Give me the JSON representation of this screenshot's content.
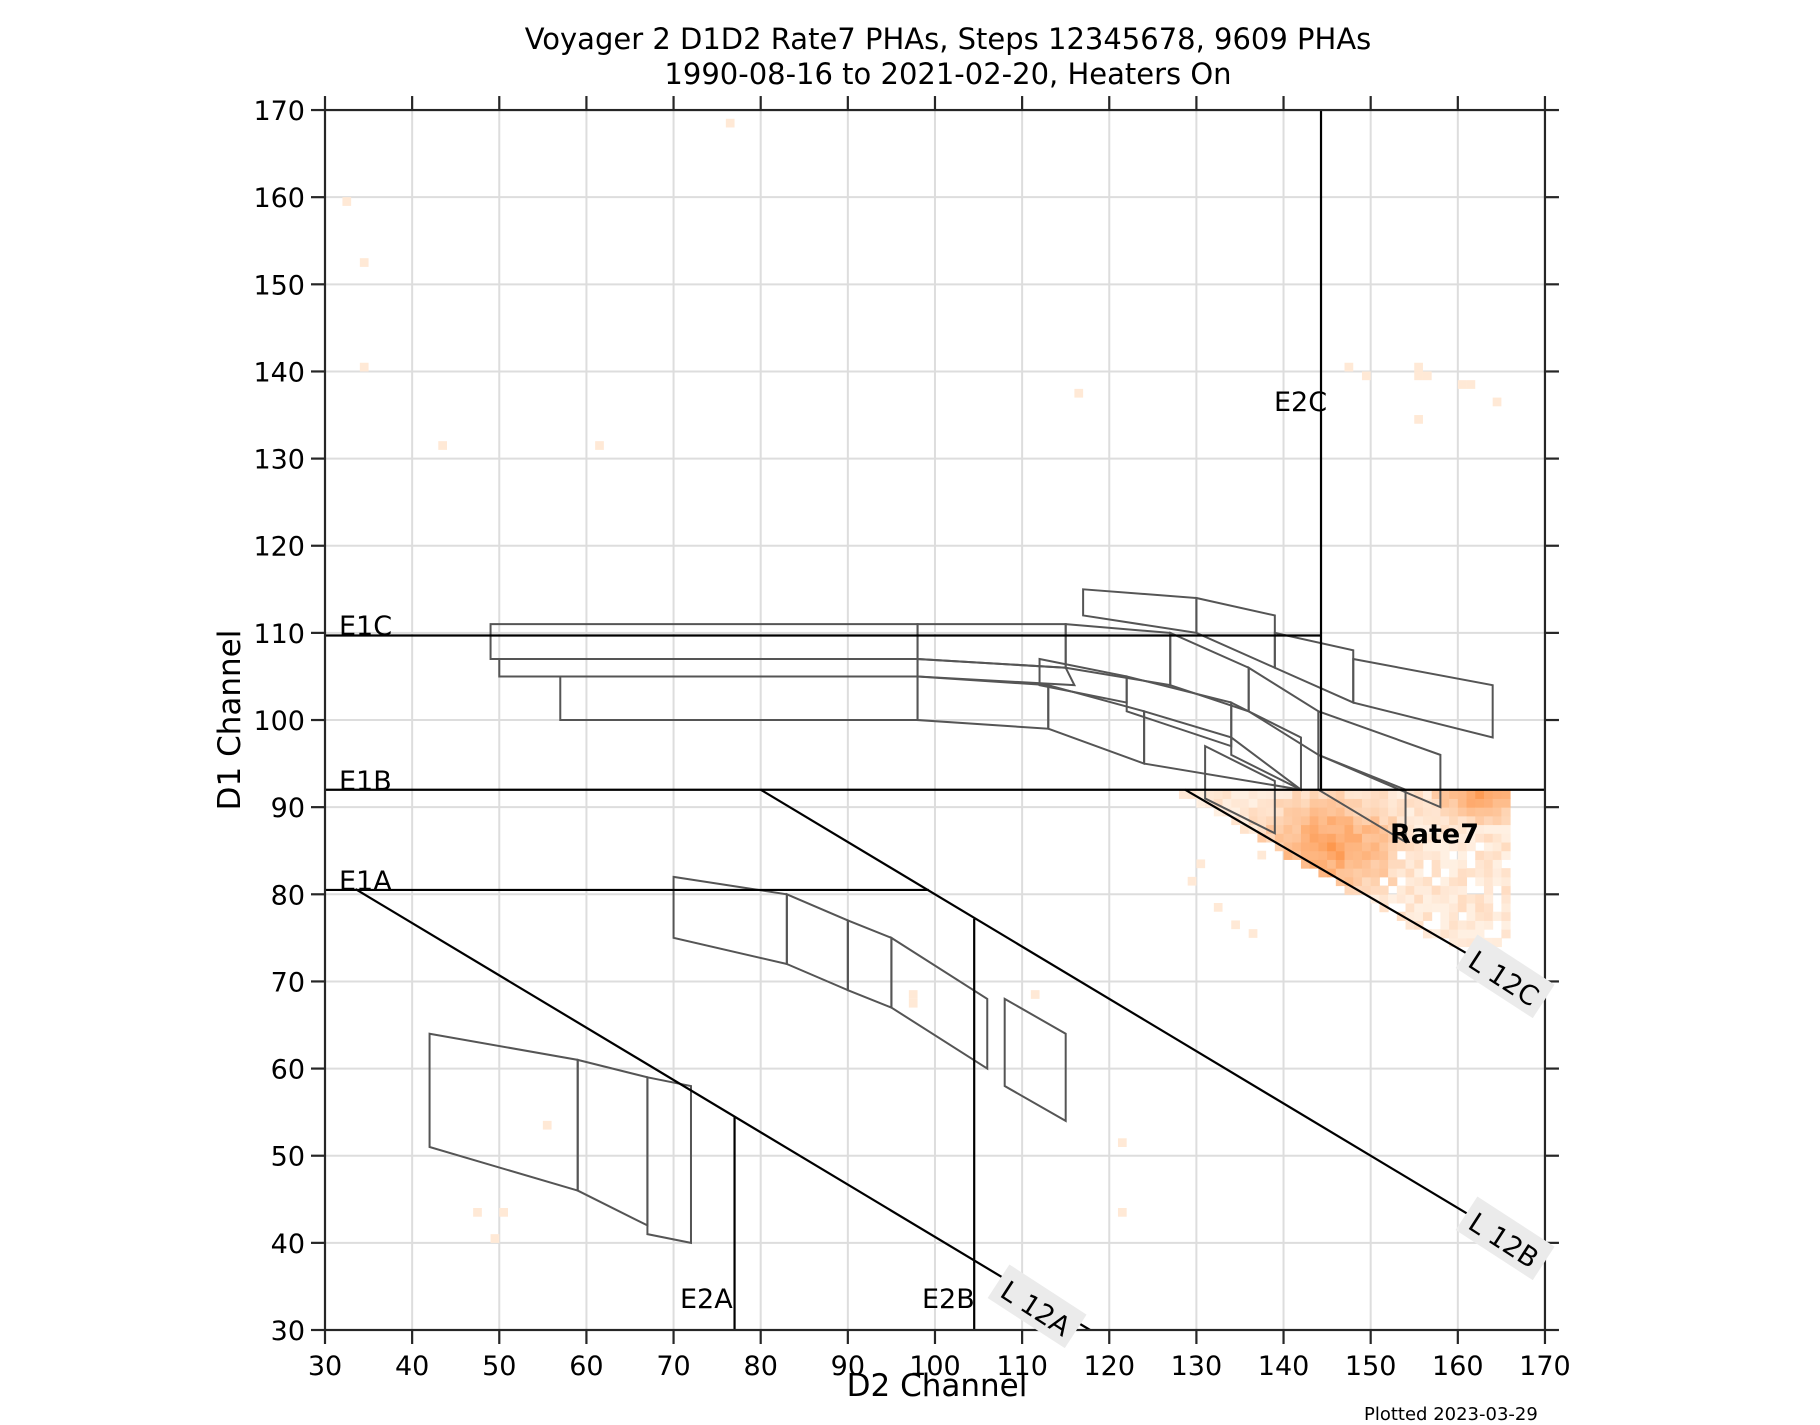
{
  "title": {
    "line1": "Voyager 2 D1D2 Rate7 PHAs, Steps 12345678, 9609 PHAs",
    "line2": "1990-08-16 to 2021-02-20, Heaters On"
  },
  "footer": "Plotted 2023-03-29",
  "colors": {
    "grid": "#dddddd",
    "axis": "#262626",
    "boundary": "#000000",
    "box": "#555555",
    "heat_low": "#fff5eb",
    "heat_high": "#fd8d3c",
    "label_bg": "#ebebeb"
  },
  "chart_data": {
    "type": "heatmap",
    "title": "Voyager 2 D1D2 Rate7 PHAs, Steps 12345678, 9609 PHAs / 1990-08-16 to 2021-02-20, Heaters On",
    "xlabel": "D2 Channel",
    "ylabel": "D1 Channel",
    "xlim": [
      30,
      170
    ],
    "ylim": [
      30,
      170
    ],
    "xticks": [
      30,
      40,
      50,
      60,
      70,
      80,
      90,
      100,
      110,
      120,
      130,
      140,
      150,
      160,
      170
    ],
    "yticks": [
      30,
      40,
      50,
      60,
      70,
      80,
      90,
      100,
      110,
      120,
      130,
      140,
      150,
      160,
      170
    ],
    "grid": true,
    "annotations": [
      "E1A",
      "E1B",
      "E1C",
      "E2A",
      "E2B",
      "E2C",
      "L 12A",
      "L 12B",
      "L 12C",
      "Rate7"
    ],
    "boundary_lines": [
      {
        "name": "E1C",
        "points": [
          [
            30,
            109.7
          ],
          [
            144.3,
            109.7
          ]
        ]
      },
      {
        "name": "E1B",
        "points": [
          [
            30,
            92
          ],
          [
            170,
            92
          ]
        ]
      },
      {
        "name": "E1A",
        "points": [
          [
            30,
            80.5
          ],
          [
            99.3,
            80.5
          ]
        ]
      },
      {
        "name": "E2A",
        "points": [
          [
            77,
            30
          ],
          [
            77,
            54.5
          ]
        ]
      },
      {
        "name": "E2B",
        "points": [
          [
            104.5,
            30
          ],
          [
            104.5,
            77.2
          ]
        ]
      },
      {
        "name": "E2C",
        "points": [
          [
            144.3,
            92
          ],
          [
            144.3,
            170
          ]
        ]
      },
      {
        "name": "L12A",
        "points": [
          [
            33.5,
            80.6
          ],
          [
            117.8,
            30
          ]
        ]
      },
      {
        "name": "L12B",
        "points": [
          [
            80,
            92
          ],
          [
            170,
            38
          ]
        ]
      },
      {
        "name": "L12C",
        "points": [
          [
            128.7,
            92
          ],
          [
            170,
            68
          ]
        ]
      }
    ],
    "boxes": [
      [
        [
          42,
          64
        ],
        [
          59,
          61
        ],
        [
          59,
          46
        ],
        [
          42,
          51
        ]
      ],
      [
        [
          59,
          61
        ],
        [
          67,
          59
        ],
        [
          67,
          42
        ],
        [
          59,
          46
        ]
      ],
      [
        [
          67,
          59
        ],
        [
          72,
          58
        ],
        [
          72,
          40
        ],
        [
          67,
          41
        ]
      ],
      [
        [
          70,
          82
        ],
        [
          83,
          80
        ],
        [
          83,
          72
        ],
        [
          70,
          75
        ]
      ],
      [
        [
          83,
          80
        ],
        [
          90,
          77
        ],
        [
          90,
          69
        ],
        [
          83,
          72
        ]
      ],
      [
        [
          90,
          77
        ],
        [
          95,
          75
        ],
        [
          95,
          67
        ],
        [
          90,
          69
        ]
      ],
      [
        [
          95,
          75
        ],
        [
          106,
          68
        ],
        [
          106,
          60
        ],
        [
          95,
          67
        ]
      ],
      [
        [
          108,
          68
        ],
        [
          115,
          64
        ],
        [
          115,
          54
        ],
        [
          108,
          58
        ]
      ],
      [
        [
          49,
          111
        ],
        [
          98,
          111
        ],
        [
          98,
          107
        ],
        [
          49,
          107
        ]
      ],
      [
        [
          50,
          107
        ],
        [
          98,
          107
        ],
        [
          98,
          105
        ],
        [
          50,
          105
        ]
      ],
      [
        [
          57,
          105
        ],
        [
          98,
          105
        ],
        [
          98,
          100
        ],
        [
          57,
          100
        ]
      ],
      [
        [
          98,
          111
        ],
        [
          115,
          111
        ],
        [
          115,
          106
        ],
        [
          98,
          107
        ]
      ],
      [
        [
          98,
          107
        ],
        [
          115,
          106
        ],
        [
          116,
          104
        ],
        [
          98,
          105
        ]
      ],
      [
        [
          98,
          105
        ],
        [
          113,
          104
        ],
        [
          113,
          99
        ],
        [
          98,
          100
        ]
      ],
      [
        [
          117,
          115
        ],
        [
          130,
          114
        ],
        [
          130,
          110
        ],
        [
          117,
          112
        ]
      ],
      [
        [
          130,
          114
        ],
        [
          139,
          112
        ],
        [
          139,
          106
        ],
        [
          130,
          110
        ]
      ],
      [
        [
          115,
          111
        ],
        [
          127,
          110
        ],
        [
          127,
          104
        ],
        [
          115,
          106
        ]
      ],
      [
        [
          127,
          110
        ],
        [
          136,
          106
        ],
        [
          136,
          101
        ],
        [
          127,
          104
        ]
      ],
      [
        [
          139,
          110
        ],
        [
          148,
          108
        ],
        [
          148,
          102
        ],
        [
          139,
          106
        ]
      ],
      [
        [
          112,
          107
        ],
        [
          122,
          105
        ],
        [
          122,
          102
        ],
        [
          112,
          104
        ]
      ],
      [
        [
          113,
          104
        ],
        [
          124,
          101
        ],
        [
          124,
          95
        ],
        [
          113,
          99
        ]
      ],
      [
        [
          122,
          105
        ],
        [
          134,
          102
        ],
        [
          134,
          97
        ],
        [
          122,
          101
        ]
      ],
      [
        [
          124,
          101
        ],
        [
          134,
          98
        ],
        [
          142,
          92
        ],
        [
          124,
          95
        ]
      ],
      [
        [
          134,
          102
        ],
        [
          142,
          98
        ],
        [
          142,
          92
        ],
        [
          134,
          96
        ]
      ],
      [
        [
          136,
          106
        ],
        [
          144,
          101
        ],
        [
          144,
          96
        ],
        [
          136,
          101
        ]
      ],
      [
        [
          131,
          97
        ],
        [
          139,
          93
        ],
        [
          139,
          87
        ],
        [
          131,
          91
        ]
      ],
      [
        [
          148,
          107
        ],
        [
          164,
          104
        ],
        [
          164,
          98
        ],
        [
          148,
          102
        ]
      ],
      [
        [
          144,
          101
        ],
        [
          158,
          96
        ],
        [
          158,
          90
        ],
        [
          144,
          96
        ]
      ],
      [
        [
          144,
          96
        ],
        [
          154,
          92
        ],
        [
          154,
          86
        ],
        [
          144,
          92
        ]
      ]
    ],
    "heatmap_region": {
      "x_range": [
        128,
        166
      ],
      "y_range": [
        74,
        92
      ],
      "peak_near": [
        [
          145,
          85
        ],
        [
          162,
          91
        ]
      ],
      "label": "Rate7"
    },
    "scattered_counts": [
      {
        "x": 32,
        "y": 159
      },
      {
        "x": 34,
        "y": 152
      },
      {
        "x": 34,
        "y": 140
      },
      {
        "x": 43,
        "y": 131
      },
      {
        "x": 61,
        "y": 131
      },
      {
        "x": 76,
        "y": 168
      },
      {
        "x": 116,
        "y": 137
      },
      {
        "x": 147,
        "y": 140
      },
      {
        "x": 149,
        "y": 139
      },
      {
        "x": 155,
        "y": 140
      },
      {
        "x": 155,
        "y": 139
      },
      {
        "x": 156,
        "y": 139
      },
      {
        "x": 155,
        "y": 134
      },
      {
        "x": 161,
        "y": 138
      },
      {
        "x": 160,
        "y": 138
      },
      {
        "x": 164,
        "y": 136
      },
      {
        "x": 55,
        "y": 53
      },
      {
        "x": 47,
        "y": 43
      },
      {
        "x": 50,
        "y": 43
      },
      {
        "x": 49,
        "y": 40
      },
      {
        "x": 97,
        "y": 68
      },
      {
        "x": 97,
        "y": 67
      },
      {
        "x": 111,
        "y": 68
      },
      {
        "x": 121,
        "y": 51
      },
      {
        "x": 121,
        "y": 43
      },
      {
        "x": 130,
        "y": 83
      },
      {
        "x": 129,
        "y": 81
      },
      {
        "x": 132,
        "y": 78
      },
      {
        "x": 134,
        "y": 76
      },
      {
        "x": 136,
        "y": 75
      },
      {
        "x": 137,
        "y": 84
      }
    ]
  },
  "axes": {
    "xlabel": "D2 Channel",
    "ylabel": "D1 Channel",
    "xticks": [
      "30",
      "40",
      "50",
      "60",
      "70",
      "80",
      "90",
      "100",
      "110",
      "120",
      "130",
      "140",
      "150",
      "160",
      "170"
    ],
    "yticks": [
      "30",
      "40",
      "50",
      "60",
      "70",
      "80",
      "90",
      "100",
      "110",
      "120",
      "130",
      "140",
      "150",
      "160",
      "170"
    ]
  },
  "labels": {
    "E1A": "E1A",
    "E1B": "E1B",
    "E1C": "E1C",
    "E2A": "E2A",
    "E2B": "E2B",
    "E2C": "E2C",
    "L12A": "L 12A",
    "L12B": "L 12B",
    "L12C": "L 12C",
    "rate7": "Rate7"
  }
}
